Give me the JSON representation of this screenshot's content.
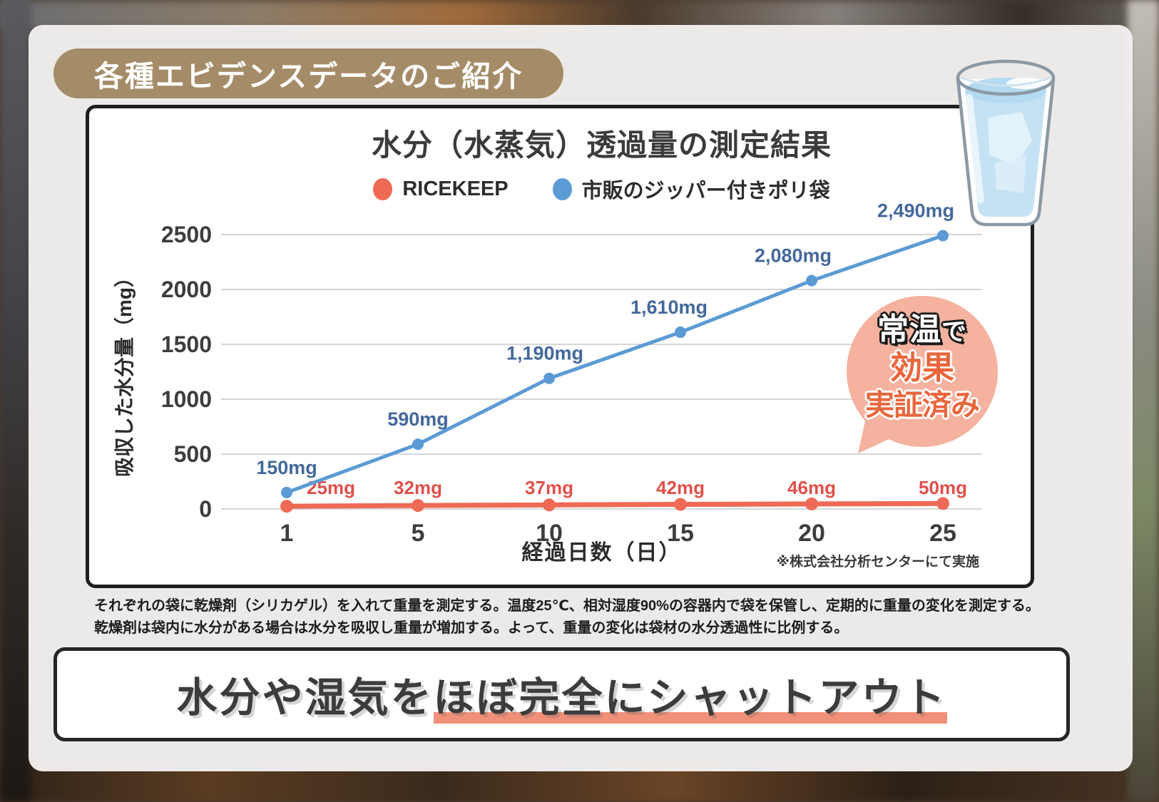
{
  "header_badge": "各種エビデンスデータのご紹介",
  "chart_data": {
    "type": "line",
    "title": "水分（水蒸気）透過量の測定結果",
    "xlabel": "経過日数（日）",
    "ylabel": "吸収した水分量（mg）",
    "categories": [
      "1",
      "5",
      "10",
      "15",
      "20",
      "25"
    ],
    "ylim": [
      0,
      2500
    ],
    "ytick_step": 500,
    "grid": true,
    "legend_position": "top-center",
    "series": [
      {
        "name": "RICEKEEP",
        "color": "#ee6a55",
        "label_color": "#e0504a",
        "values": [
          25,
          32,
          37,
          42,
          46,
          50
        ],
        "labels": [
          "25mg",
          "32mg",
          "37mg",
          "42mg",
          "46mg",
          "50mg"
        ]
      },
      {
        "name": "市販のジッパー付きポリ袋",
        "color": "#5b9bd5",
        "label_color": "#44689b",
        "values": [
          150,
          590,
          1190,
          1610,
          2080,
          2490
        ],
        "labels": [
          "150mg",
          "590mg",
          "1,190mg",
          "1,610mg",
          "2,080mg",
          "2,490mg"
        ]
      }
    ]
  },
  "chart_note": "※株式会社分析センターにて実施",
  "bubble_badge": {
    "line1_main": "常温",
    "line1_suffix": "で",
    "line2": "効果",
    "line3": "実証済み",
    "bg_color": "#f5b29f",
    "text_color": "#e8663c"
  },
  "description_lines": {
    "line1": "それぞれの袋に乾燥剤（シリカゲル）を入れて重量を測定する。温度25℃、相対湿度90%の容器内で袋を保管し、定期的に重量の変化を測定する。",
    "line2": "乾燥剤は袋内に水分がある場合は水分を吸収し重量が増加する。よって、重量の変化は袋材の水分透過性に比例する。"
  },
  "banner": {
    "plain": "水分や湿気を",
    "highlighted": "ほぼ完全にシャットアウト",
    "underline_color": "#f19078"
  },
  "colors": {
    "header_badge_bg": "#a58c68",
    "grid_line": "#d6d6d6",
    "tick_label": "#3d3d3d",
    "chart_border": "#1e1e1e"
  }
}
